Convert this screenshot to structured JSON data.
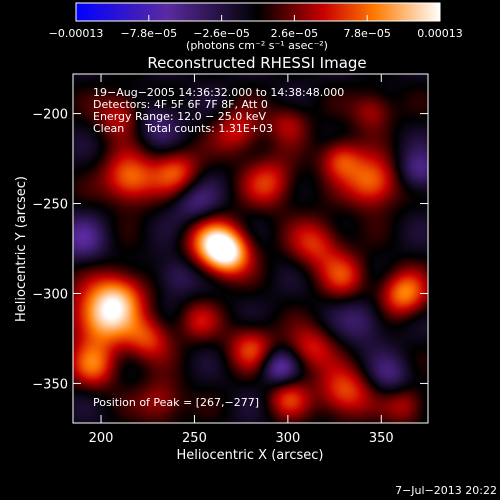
{
  "chart_data": {
    "type": "heatmap",
    "title": "Reconstructed RHESSI Image",
    "xlabel": "Heliocentric X (arcsec)",
    "ylabel": "Heliocentric Y (arcsec)",
    "xlim": [
      185,
      375
    ],
    "ylim": [
      -372,
      -178
    ],
    "x_ticks": [
      200,
      250,
      300,
      350
    ],
    "y_ticks": [
      -200,
      -250,
      -300,
      -350
    ],
    "colorbar": {
      "range": [
        -0.00013,
        0.00013
      ],
      "tick_values": [
        -0.00013,
        -7.8e-05,
        -2.6e-05,
        2.6e-05,
        7.8e-05,
        0.00013
      ],
      "tick_labels": [
        "−0.00013",
        "−7.8e−05",
        "−2.6e−05",
        "2.6e−05",
        "7.8e−05",
        "0.00013"
      ],
      "units_label": "(photons cm⁻² s⁻¹ asec⁻²)"
    },
    "annotations": [
      "19−Aug−2005 14:36:32.000 to 14:38:48.000",
      "Detectors: 4F 5F 6F 7F 8F, Att 0",
      "Energy Range: 12.0 − 25.0 keV",
      "Clean      Total counts: 1.31E+03"
    ],
    "peak_label": "Position of Peak = [267,−277]",
    "peak": {
      "x": 267,
      "y": -277
    },
    "footer_date": "7−Jul−2013 20:22",
    "sources": [
      {
        "x": 267,
        "y": -277,
        "amp": 1.0,
        "sigma": 9
      },
      {
        "x": 258,
        "y": -270,
        "amp": 0.55,
        "sigma": 10
      },
      {
        "x": 200,
        "y": -313,
        "amp": 0.85,
        "sigma": 12
      },
      {
        "x": 210,
        "y": -300,
        "amp": 0.55,
        "sigma": 10
      },
      {
        "x": 196,
        "y": -340,
        "amp": 0.55,
        "sigma": 9
      },
      {
        "x": 225,
        "y": -325,
        "amp": 0.5,
        "sigma": 9
      },
      {
        "x": 215,
        "y": -236,
        "amp": 0.7,
        "sigma": 10
      },
      {
        "x": 240,
        "y": -232,
        "amp": 0.55,
        "sigma": 9
      },
      {
        "x": 290,
        "y": -238,
        "amp": 0.5,
        "sigma": 10
      },
      {
        "x": 273,
        "y": -210,
        "amp": 0.45,
        "sigma": 9
      },
      {
        "x": 345,
        "y": -238,
        "amp": 0.7,
        "sigma": 10
      },
      {
        "x": 328,
        "y": -225,
        "amp": 0.55,
        "sigma": 8
      },
      {
        "x": 315,
        "y": -272,
        "amp": 0.5,
        "sigma": 10
      },
      {
        "x": 330,
        "y": -290,
        "amp": 0.45,
        "sigma": 9
      },
      {
        "x": 362,
        "y": -300,
        "amp": 0.7,
        "sigma": 9
      },
      {
        "x": 330,
        "y": -355,
        "amp": 0.6,
        "sigma": 10
      },
      {
        "x": 312,
        "y": -330,
        "amp": 0.45,
        "sigma": 9
      },
      {
        "x": 280,
        "y": -330,
        "amp": 0.5,
        "sigma": 9
      },
      {
        "x": 300,
        "y": -358,
        "amp": 0.45,
        "sigma": 8
      },
      {
        "x": 232,
        "y": -360,
        "amp": 0.4,
        "sigma": 9
      },
      {
        "x": 210,
        "y": -200,
        "amp": 0.45,
        "sigma": 9
      },
      {
        "x": 345,
        "y": -198,
        "amp": 0.4,
        "sigma": 8
      },
      {
        "x": 300,
        "y": -205,
        "amp": 0.35,
        "sigma": 8
      },
      {
        "x": 252,
        "y": -315,
        "amp": 0.35,
        "sigma": 8
      },
      {
        "x": 363,
        "y": -362,
        "amp": 0.4,
        "sigma": 8
      },
      {
        "x": 250,
        "y": -250,
        "amp": -0.35,
        "sigma": 9
      },
      {
        "x": 295,
        "y": -341,
        "amp": -0.5,
        "sigma": 7
      },
      {
        "x": 370,
        "y": -232,
        "amp": -0.4,
        "sigma": 8
      },
      {
        "x": 340,
        "y": -315,
        "amp": -0.3,
        "sigma": 9
      },
      {
        "x": 190,
        "y": -270,
        "amp": -0.35,
        "sigma": 9
      },
      {
        "x": 230,
        "y": -205,
        "amp": -0.3,
        "sigma": 9
      },
      {
        "x": 240,
        "y": -290,
        "amp": -0.3,
        "sigma": 8
      },
      {
        "x": 355,
        "y": -345,
        "amp": -0.3,
        "sigma": 8
      }
    ]
  }
}
